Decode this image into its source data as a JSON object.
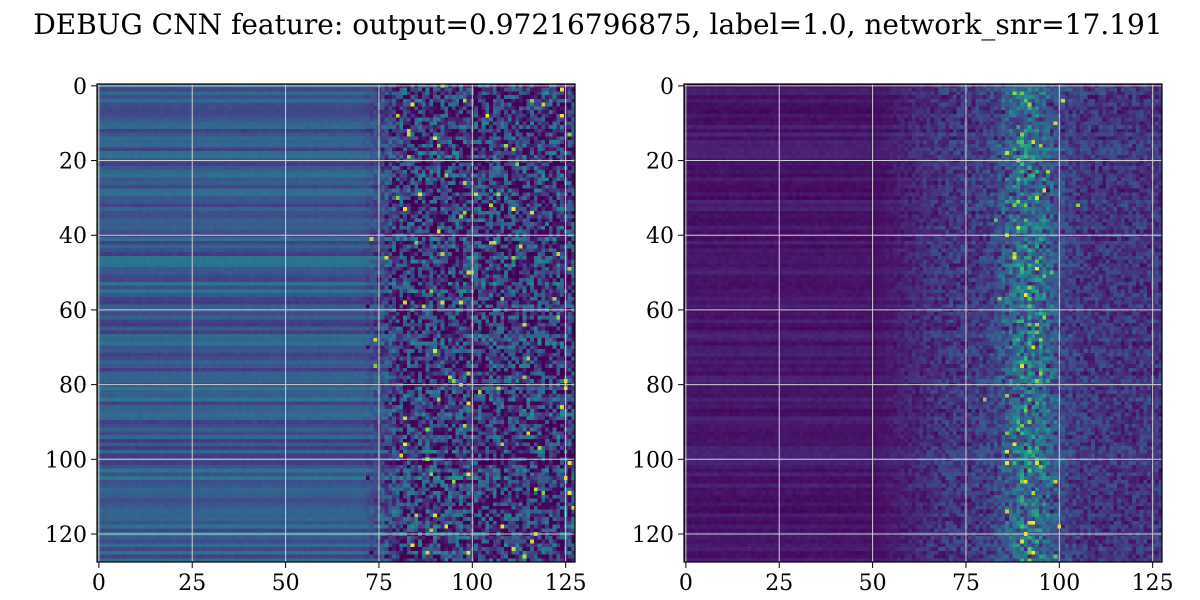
{
  "figure": {
    "title": "DEBUG CNN feature: output=0.97216796875, label=1.0, network_snr=17.191"
  },
  "chart_data": [
    {
      "type": "heatmap",
      "colormap": "viridis",
      "rows": 128,
      "cols": 128,
      "xlim": [
        -0.5,
        127.5
      ],
      "ylim": [
        127.5,
        -0.5
      ],
      "xticks": [
        0,
        25,
        50,
        75,
        100,
        125
      ],
      "yticks": [
        0,
        20,
        40,
        60,
        80,
        100,
        120
      ],
      "xtick_labels": [
        "0",
        "25",
        "50",
        "75",
        "100",
        "125"
      ],
      "ytick_labels": [
        "0",
        "20",
        "40",
        "60",
        "80",
        "100",
        "120"
      ],
      "grid": true,
      "grid_color": "#cfcfcf",
      "description": "left panel: mid-range green/teal horizontal banding for x<70, noisy speckle with yellow hot pixels for x>70",
      "value_range": [
        0,
        1
      ],
      "baseline_level": 0.35,
      "noise_onset_x": 70,
      "noise_amplitude": 0.35
    },
    {
      "type": "heatmap",
      "colormap": "viridis",
      "rows": 128,
      "cols": 128,
      "xlim": [
        -0.5,
        127.5
      ],
      "ylim": [
        127.5,
        -0.5
      ],
      "xticks": [
        0,
        25,
        50,
        75,
        100,
        125
      ],
      "yticks": [
        0,
        20,
        40,
        60,
        80,
        100,
        120
      ],
      "xtick_labels": [
        "0",
        "25",
        "50",
        "75",
        "100",
        "125"
      ],
      "ytick_labels": [
        "0",
        "20",
        "40",
        "60",
        "80",
        "100",
        "120"
      ],
      "grid": true,
      "grid_color": "#cfcfcf",
      "description": "right panel: dark purple background with faint banding, bright speckle cluster concentrated near x=85-100",
      "value_range": [
        0,
        1
      ],
      "baseline_level": 0.08,
      "noise_onset_x": 50,
      "hotspot_center_x": 92,
      "hotspot_width": 8
    }
  ]
}
